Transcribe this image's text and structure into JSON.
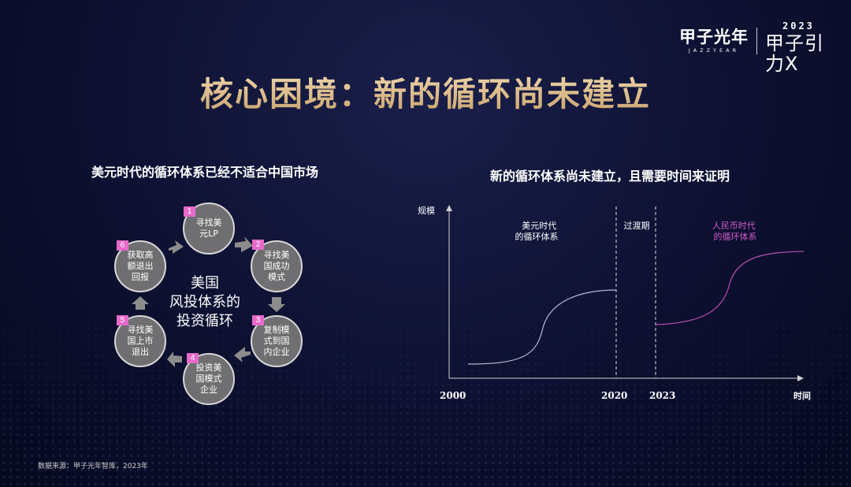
{
  "logo": {
    "cn": "甲子光年",
    "en": "JAZZYEAR",
    "year": "2023",
    "event": "甲子引力X"
  },
  "title": "核心困境：新的循环尚未建立",
  "left": {
    "subtitle": "美元时代的循环体系已经不适合中国市场",
    "center": [
      "美国",
      "风投体系的",
      "投资循环"
    ],
    "steps": [
      {
        "num": "1",
        "text": "寻找美元LP"
      },
      {
        "num": "2",
        "text": "寻找美国成功模式"
      },
      {
        "num": "3",
        "text": "复制模式到国内企业"
      },
      {
        "num": "4",
        "text": "投资美国模式企业"
      },
      {
        "num": "5",
        "text": "寻找美国上市退出"
      },
      {
        "num": "6",
        "text": "获取高额退出回报"
      }
    ]
  },
  "right": {
    "subtitle": "新的循环体系尚未建立，且需要时间来证明",
    "chart_data": {
      "type": "line",
      "ylabel": "规模",
      "xlabel": "时间",
      "x_ticks": [
        "2000",
        "2020",
        "2023"
      ],
      "regions": [
        {
          "label": "美元时代的循环体系",
          "from": "2000",
          "to": "2020"
        },
        {
          "label": "过渡期",
          "from": "2020",
          "to": "2023"
        },
        {
          "label": "人民币时代的循环体系",
          "from": "2023",
          "to": ""
        }
      ],
      "series": [
        {
          "color": "#b9b9d6"
        },
        {
          "color": "#b84fb0"
        }
      ],
      "grid": false
    }
  },
  "source": "数据来源：甲子光年智库，2023年"
}
